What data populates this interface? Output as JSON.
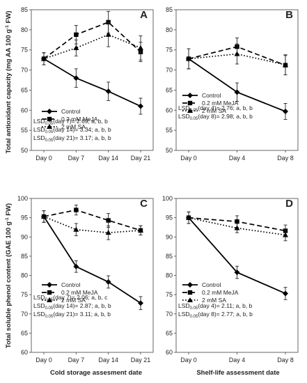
{
  "figure": {
    "ylabel_top": "Total antioxidant capacity (mg AA 100 g",
    "ylabel_top_sup": "-1",
    "ylabel_top_end": " FW)",
    "ylabel_bottom": "Total soluble phenol content (GAE 100 g",
    "ylabel_bottom_sup": "-1",
    "ylabel_bottom_end": " FW)",
    "xlabel_left": "Cold storage assesment date",
    "xlabel_right": "Shelf-life assessment date"
  },
  "colors": {
    "line": "#000000",
    "errorbar": "#222222"
  },
  "chart_data": [
    {
      "panel": "A",
      "type": "line",
      "categories": [
        "Day 0",
        "Day 7",
        "Day 14",
        "Day 21"
      ],
      "ylim": [
        50,
        85
      ],
      "yticks": [
        50,
        55,
        60,
        65,
        70,
        75,
        80,
        85
      ],
      "grid": false,
      "legend_placement": "bottom-left",
      "series": [
        {
          "name": "Control",
          "style": "solid",
          "marker": "diamond",
          "values": [
            72.8,
            68.0,
            64.7,
            61.0
          ],
          "errors": [
            1.5,
            2.3,
            2.3,
            2.0
          ]
        },
        {
          "name": "0.2 mM MeJA",
          "style": "dashed",
          "marker": "square",
          "values": [
            72.8,
            78.8,
            81.9,
            74.5
          ],
          "errors": [
            1.5,
            2.3,
            2.7,
            2.4
          ]
        },
        {
          "name": "2 mM SA",
          "style": "dotted",
          "marker": "triangle",
          "values": [
            72.8,
            75.5,
            78.8,
            75.5
          ],
          "errors": [
            1.5,
            2.0,
            3.0,
            3.0
          ]
        }
      ],
      "lsd": [
        {
          "prefix": "LSD",
          "sub": "0.05",
          "text": "(day 7)= 2.69; a, b, b"
        },
        {
          "prefix": "LSD",
          "sub": "0.05",
          "text": "(day 14)= 3.34; a, b, b"
        },
        {
          "prefix": "LSD",
          "sub": "0.05",
          "text": "(day 21)= 3.17; a, b, b"
        }
      ]
    },
    {
      "panel": "B",
      "type": "line",
      "categories": [
        "Day 0",
        "Day 4",
        "Day 8"
      ],
      "ylim": [
        50,
        85
      ],
      "yticks": [
        50,
        55,
        60,
        65,
        70,
        75,
        80,
        85
      ],
      "grid": false,
      "legend_placement": "bottom-left",
      "series": [
        {
          "name": "Control",
          "style": "solid",
          "marker": "diamond",
          "values": [
            72.8,
            64.5,
            59.7
          ],
          "errors": [
            2.5,
            2.3,
            2.0
          ]
        },
        {
          "name": "0.2 mM MeJA",
          "style": "dashed",
          "marker": "square",
          "values": [
            72.8,
            75.8,
            71.2
          ],
          "errors": [
            2.5,
            2.2,
            2.4
          ]
        },
        {
          "name": "2 mM SA",
          "style": "dotted",
          "marker": "triangle",
          "values": [
            72.8,
            74.0,
            71.3
          ],
          "errors": [
            2.5,
            2.5,
            2.5
          ]
        }
      ],
      "lsd": [
        {
          "prefix": "LSD",
          "sub": "0.05",
          "text": "(day 4)= 2.76; a, b, b"
        },
        {
          "prefix": "LSD",
          "sub": "0.05",
          "text": "(day 8)= 2.98; a, b, b"
        }
      ]
    },
    {
      "panel": "C",
      "type": "line",
      "categories": [
        "Day 0",
        "Day 7",
        "Day 14",
        "Day 21"
      ],
      "ylim": [
        60,
        100
      ],
      "yticks": [
        60,
        65,
        70,
        75,
        80,
        85,
        90,
        95,
        100
      ],
      "grid": false,
      "legend_placement": "bottom-left",
      "series": [
        {
          "name": "Control",
          "style": "solid",
          "marker": "diamond",
          "values": [
            95.3,
            82.3,
            78.3,
            72.8
          ],
          "errors": [
            1.5,
            1.5,
            1.6,
            1.7
          ]
        },
        {
          "name": "0.2 mM MeJA",
          "style": "dashed",
          "marker": "square",
          "values": [
            95.3,
            97.0,
            94.3,
            91.7
          ],
          "errors": [
            1.5,
            1.3,
            1.8,
            1.2
          ]
        },
        {
          "name": "2 mM SA",
          "style": "dotted",
          "marker": "triangle",
          "values": [
            95.3,
            91.9,
            91.1,
            91.7
          ],
          "errors": [
            1.5,
            1.6,
            1.8,
            1.2
          ]
        }
      ],
      "lsd": [
        {
          "prefix": "LSD",
          "sub": "0.05",
          "text": "(day 7)= 2.06; a, b, c"
        },
        {
          "prefix": "LSD",
          "sub": "0.05",
          "text": "(day 14)= 2.87; a, b, b"
        },
        {
          "prefix": "LSD",
          "sub": "0.05",
          "text": "(day 21)= 3.11; a, b, b"
        }
      ]
    },
    {
      "panel": "D",
      "type": "line",
      "categories": [
        "Day 0",
        "Day 4",
        "Day 8"
      ],
      "ylim": [
        60,
        100
      ],
      "yticks": [
        60,
        65,
        70,
        75,
        80,
        85,
        90,
        95,
        100
      ],
      "grid": false,
      "legend_placement": "bottom-left",
      "series": [
        {
          "name": "Control",
          "style": "solid",
          "marker": "diamond",
          "values": [
            95.0,
            80.8,
            75.3
          ],
          "errors": [
            1.5,
            1.6,
            1.6
          ]
        },
        {
          "name": "0.2 mM MeJA",
          "style": "dashed",
          "marker": "square",
          "values": [
            95.0,
            94.0,
            91.6
          ],
          "errors": [
            1.5,
            1.5,
            1.5
          ]
        },
        {
          "name": "2 mM SA",
          "style": "dotted",
          "marker": "triangle",
          "values": [
            95.0,
            92.3,
            90.5
          ],
          "errors": [
            1.5,
            1.2,
            1.5
          ]
        }
      ],
      "lsd": [
        {
          "prefix": "LSD",
          "sub": "0.05",
          "text": "(day 4)= 2.11; a, b, b"
        },
        {
          "prefix": "LSD",
          "sub": "0.05",
          "text": "(day 8)= 2.77; a, b, b"
        }
      ]
    }
  ]
}
